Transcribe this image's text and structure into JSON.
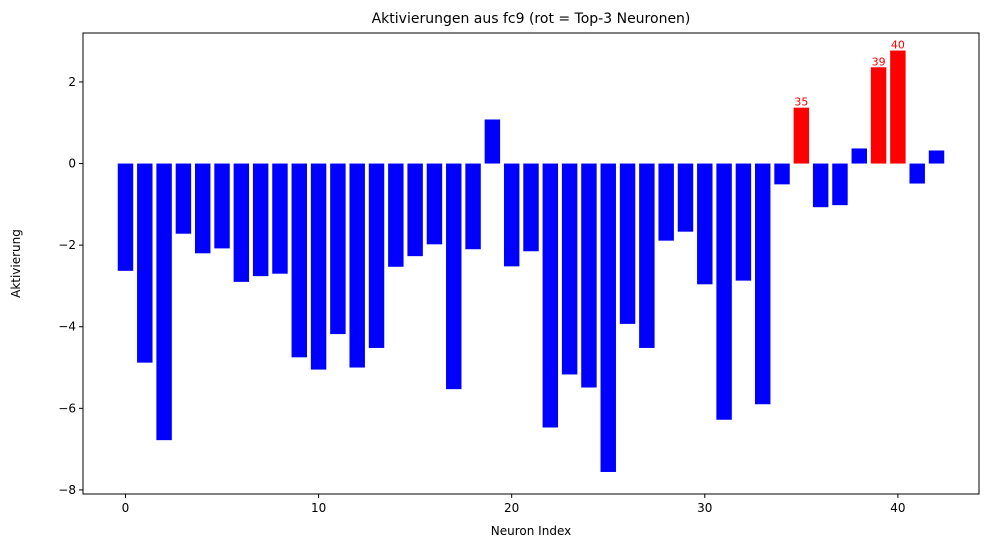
{
  "chart_data": {
    "type": "bar",
    "title": "Aktivierungen aus fc9 (rot = Top-3 Neuronen)",
    "xlabel": "Neuron Index",
    "ylabel": "Aktivierung",
    "xlim": [
      -2.2,
      44.2
    ],
    "ylim": [
      -8.1,
      3.2
    ],
    "xticks": [
      0,
      10,
      20,
      30,
      40
    ],
    "yticks": [
      -8,
      -6,
      -4,
      -2,
      0,
      2
    ],
    "xtick_labels": [
      "0",
      "10",
      "20",
      "30",
      "40"
    ],
    "ytick_labels": [
      "−8",
      "−6",
      "−4",
      "−2",
      "0",
      "2"
    ],
    "grid": false,
    "colors": {
      "default": "#0000ff",
      "highlight": "#ff0000"
    },
    "top3_indices": [
      35,
      39,
      40
    ],
    "top3_labels": [
      "35",
      "39",
      "40"
    ],
    "values": [
      -2.63,
      -4.88,
      -6.78,
      -1.72,
      -2.2,
      -2.08,
      -2.9,
      -2.76,
      -2.7,
      -4.75,
      -5.05,
      -4.18,
      -5.0,
      -4.52,
      -2.53,
      -2.27,
      -1.98,
      -5.53,
      -2.1,
      1.08,
      -2.52,
      -2.15,
      -6.47,
      -5.17,
      -5.49,
      -7.56,
      -3.93,
      -4.52,
      -1.89,
      -1.67,
      -2.96,
      -6.28,
      -2.87,
      -5.9,
      -0.51,
      1.37,
      -1.07,
      -1.02,
      0.37,
      2.36,
      2.77,
      -0.49,
      0.32
    ]
  }
}
